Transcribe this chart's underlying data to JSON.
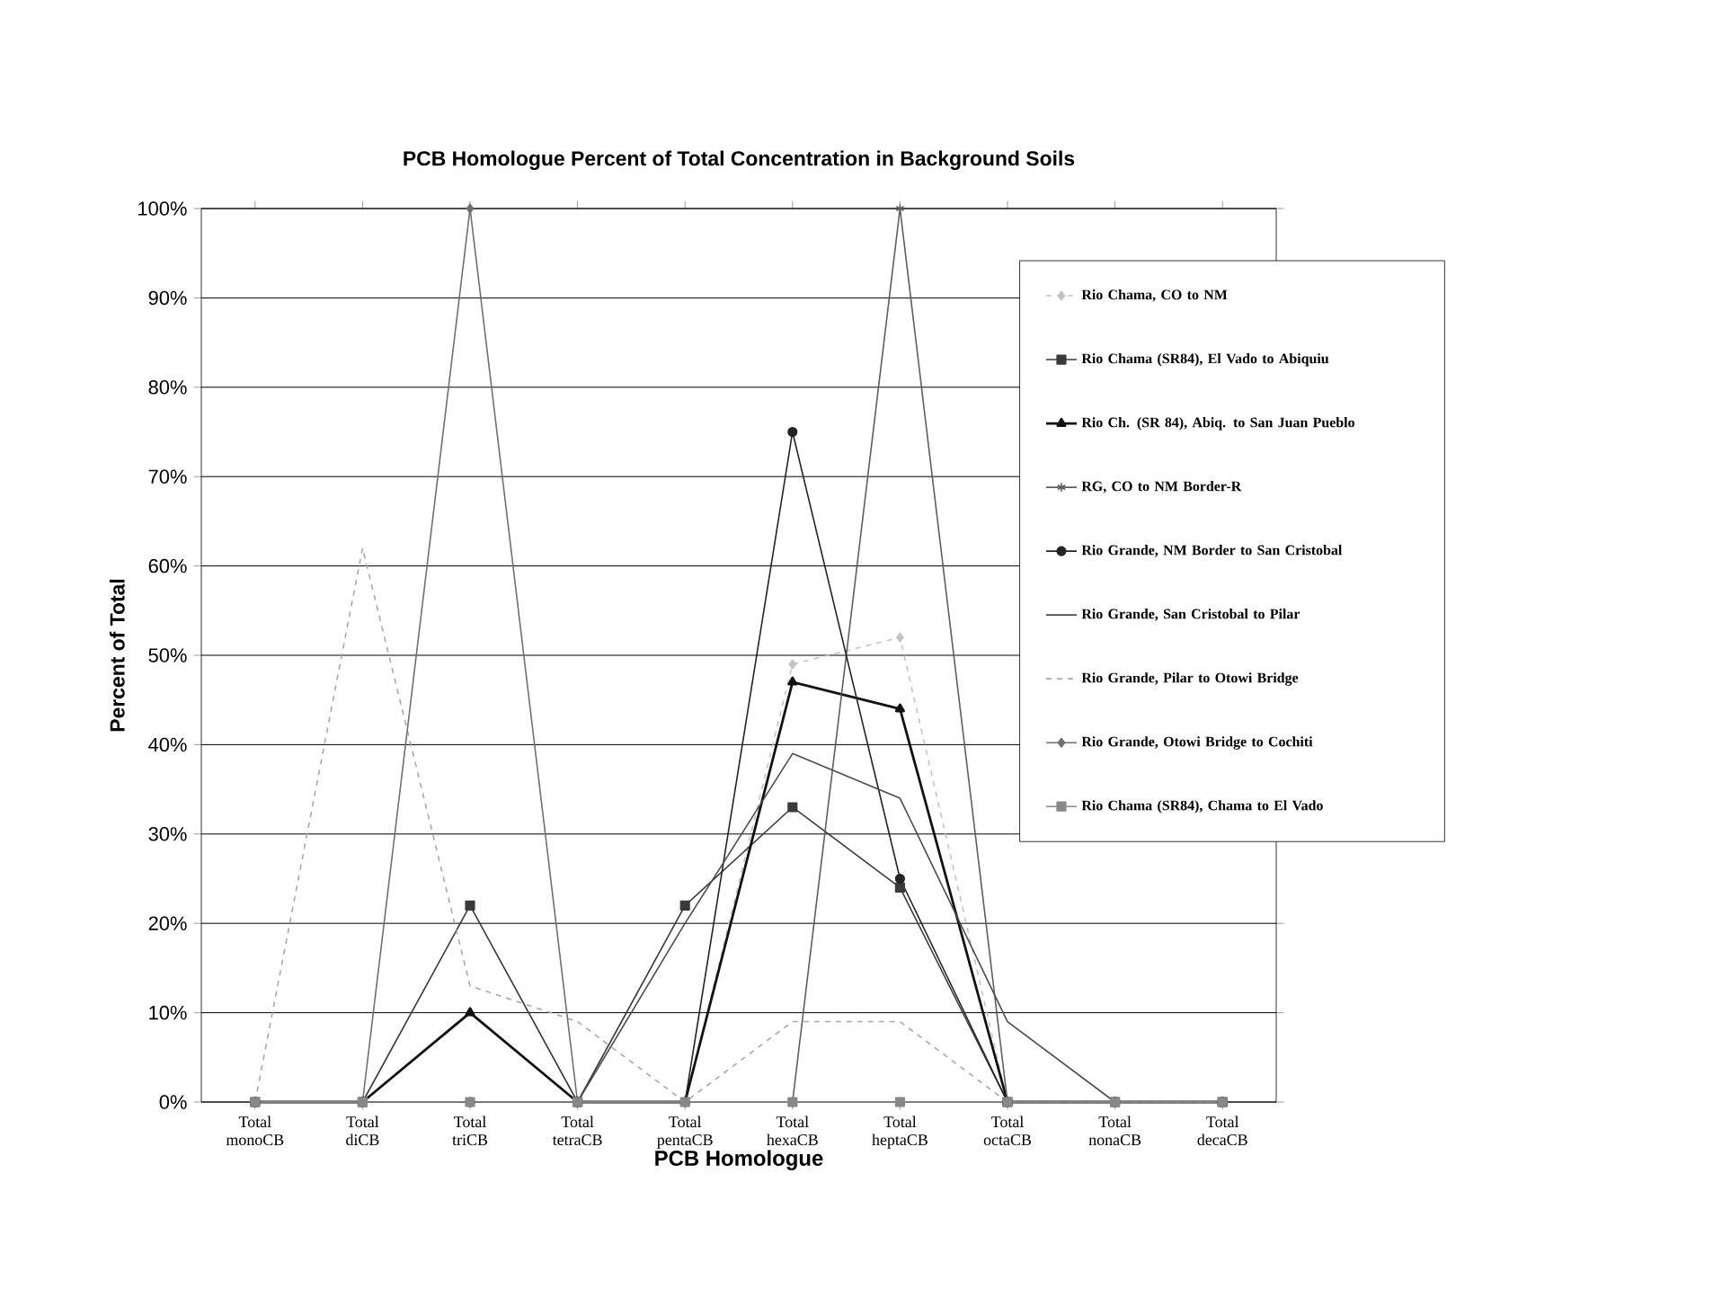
{
  "chart_data": {
    "type": "line",
    "title": "PCB Homologue Percent of Total Concentration in Background Soils",
    "xlabel": "PCB Homologue",
    "ylabel": "Percent of Total",
    "categories": [
      "Total monoCB",
      "Total diCB",
      "Total triCB",
      "Total tetraCB",
      "Total pentaCB",
      "Total hexaCB",
      "Total heptaCB",
      "Total octaCB",
      "Total nonaCB",
      "Total decaCB"
    ],
    "ylim": [
      0,
      100
    ],
    "yticks": [
      {
        "value": 0,
        "label": "0%"
      },
      {
        "value": 10,
        "label": "10%"
      },
      {
        "value": 20,
        "label": "20%"
      },
      {
        "value": 30,
        "label": "30%"
      },
      {
        "value": 40,
        "label": "40%"
      },
      {
        "value": 50,
        "label": "50%"
      },
      {
        "value": 60,
        "label": "60%"
      },
      {
        "value": 70,
        "label": "70%"
      },
      {
        "value": 80,
        "label": "80%"
      },
      {
        "value": 90,
        "label": "90%"
      },
      {
        "value": 100,
        "label": "100%"
      }
    ],
    "grid": "y",
    "legend": "top right",
    "series": [
      {
        "name": "Rio Chama, CO to NM",
        "color": "#c4c4c4",
        "marker": "diamond",
        "line_style": "dashed",
        "values": [
          0,
          0,
          0,
          0,
          0,
          49,
          52,
          0,
          0,
          0
        ]
      },
      {
        "name": "Rio Chama (SR84), El Vado to Abiquiu",
        "color": "#3a3a3a",
        "marker": "square",
        "values": [
          0,
          0,
          22,
          0,
          22,
          33,
          24,
          0,
          0,
          0
        ]
      },
      {
        "name": "Rio Ch. (SR 84), Abiq. to San Juan Pueblo",
        "color": "#111111",
        "marker": "triangle",
        "values": [
          0,
          0,
          10,
          0,
          0,
          47,
          44,
          0,
          0,
          0
        ]
      },
      {
        "name": "RG, CO to NM Border-R",
        "color": "#5e5e5e",
        "marker": "cross",
        "values": [
          0,
          0,
          0,
          0,
          0,
          0,
          100,
          0,
          0,
          0
        ]
      },
      {
        "name": "Rio Grande, NM Border to San Cristobal",
        "color": "#242424",
        "marker": "circle",
        "values": [
          0,
          0,
          0,
          0,
          0,
          75,
          25,
          0,
          0,
          0
        ]
      },
      {
        "name": "Rio Grande, San Cristobal to Pilar",
        "color": "#4c4c4c",
        "marker": "none",
        "values": [
          0,
          0,
          0,
          0,
          20,
          39,
          34,
          9,
          0,
          0
        ]
      },
      {
        "name": "Rio Grande, Pilar to Otowi Bridge",
        "color": "#a8a8a8",
        "marker": "none",
        "line_style": "dashed",
        "values": [
          0,
          62,
          13,
          9,
          0,
          9,
          9,
          0,
          0,
          0
        ]
      },
      {
        "name": "Rio Grande, Otowi Bridge to Cochiti",
        "color": "#707070",
        "marker": "diamond",
        "values": [
          0,
          0,
          100,
          0,
          0,
          0,
          0,
          0,
          0,
          0
        ]
      },
      {
        "name": "Rio Chama (SR84), Chama to El Vado",
        "color": "#888888",
        "marker": "square",
        "values": [
          0,
          0,
          0,
          0,
          0,
          0,
          0,
          0,
          0,
          0
        ]
      }
    ]
  }
}
